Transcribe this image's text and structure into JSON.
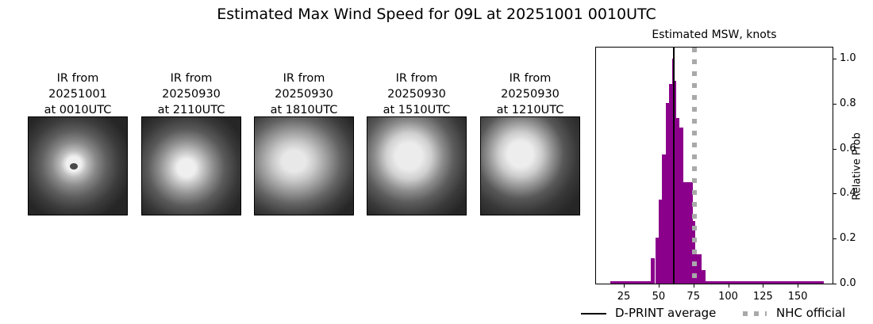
{
  "figure": {
    "suptitle": "Estimated Max Wind Speed for 09L at 20251001 0010UTC"
  },
  "ir_panels": [
    {
      "line1": "IR from",
      "line2": "20251001",
      "line3": "at 0010UTC"
    },
    {
      "line1": "IR from",
      "line2": "20250930",
      "line3": "at 2110UTC"
    },
    {
      "line1": "IR from",
      "line2": "20250930",
      "line3": "at 1810UTC"
    },
    {
      "line1": "IR from",
      "line2": "20250930",
      "line3": "at 1510UTC"
    },
    {
      "line1": "IR from",
      "line2": "20250930",
      "line3": "at 1210UTC"
    }
  ],
  "chart_data": {
    "type": "bar",
    "title": "Estimated MSW, knots",
    "xlabel": "",
    "ylabel": "Relative Prob",
    "xlim": [
      5,
      175
    ],
    "ylim": [
      0,
      1.05
    ],
    "xticks": [
      "25",
      "50",
      "75",
      "100",
      "125",
      "150"
    ],
    "yticks": [
      "0.0",
      "0.2",
      "0.4",
      "0.6",
      "0.8",
      "1.0"
    ],
    "bar_color": "#8b008b",
    "bins": [
      {
        "x0": 15,
        "x1": 44.5,
        "value": 0.01
      },
      {
        "x0": 44.5,
        "x1": 47.5,
        "value": 0.113
      },
      {
        "x0": 47.5,
        "x1": 50,
        "value": 0.203
      },
      {
        "x0": 50,
        "x1": 52.5,
        "value": 0.372
      },
      {
        "x0": 52.5,
        "x1": 55,
        "value": 0.575
      },
      {
        "x0": 55,
        "x1": 57.5,
        "value": 0.805
      },
      {
        "x0": 57.5,
        "x1": 59.5,
        "value": 0.889
      },
      {
        "x0": 59.5,
        "x1": 61.5,
        "value": 1.0
      },
      {
        "x0": 61.5,
        "x1": 62.5,
        "value": 0.903
      },
      {
        "x0": 62.5,
        "x1": 65,
        "value": 0.738
      },
      {
        "x0": 65,
        "x1": 68,
        "value": 0.695
      },
      {
        "x0": 68,
        "x1": 74.5,
        "value": 0.452
      },
      {
        "x0": 74.5,
        "x1": 76.5,
        "value": 0.277
      },
      {
        "x0": 76.5,
        "x1": 81,
        "value": 0.13
      },
      {
        "x0": 81,
        "x1": 83.5,
        "value": 0.06
      },
      {
        "x0": 83.5,
        "x1": 169,
        "value": 0.01
      }
    ],
    "lines": [
      {
        "name": "D-PRINT average",
        "x": 61,
        "style": "solid",
        "color": "#000000"
      },
      {
        "name": "NHC official",
        "x": 76,
        "style": "dotted",
        "color": "#a9a9a9"
      }
    ],
    "legend": {
      "position": "bottom",
      "entries": [
        "D-PRINT average",
        "NHC official"
      ]
    },
    "grid": false
  }
}
